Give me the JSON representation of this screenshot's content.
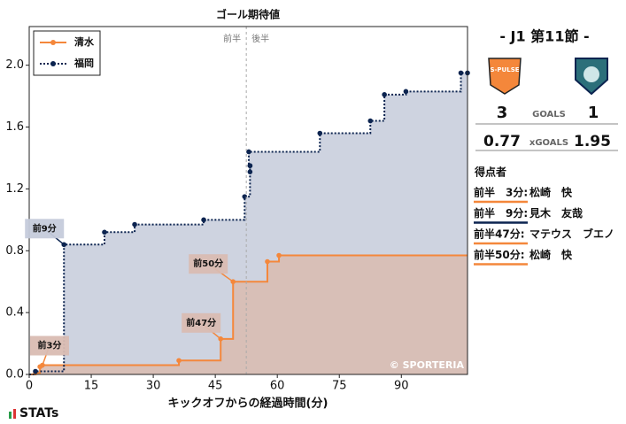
{
  "chart_data": {
    "type": "step",
    "title": "ゴール期待値",
    "xlabel": "キックオフからの経過時間(分)",
    "xlim": [
      0,
      106
    ],
    "ylim": [
      0,
      2.25
    ],
    "xticks": [
      0,
      15,
      30,
      45,
      60,
      75,
      90
    ],
    "yticks": [
      {
        "value": 0,
        "label": "0.0"
      },
      0.4,
      0.8,
      1.2,
      1.6,
      {
        "value": 2,
        "label": "2.0"
      }
    ],
    "halftime": {
      "x": 52.5,
      "left": "前半",
      "right": "後半"
    },
    "legend": "upper left",
    "watermark": "© SPORTERIA",
    "series": [
      {
        "name": "清水",
        "color": "#f4873b",
        "fill": "#d9bcb2",
        "style": "solid",
        "x": [
          0,
          1.5,
          2.6,
          3.2,
          36.2,
          46.3,
          49.3,
          57.6,
          60.4
        ],
        "values": [
          0,
          0.01,
          0.05,
          0.06,
          0.09,
          0.23,
          0.6,
          0.73,
          0.77
        ]
      },
      {
        "name": "福岡",
        "color": "#0c2450",
        "fill": "#c5cbdb",
        "style": "dotted",
        "x": [
          0,
          1.5,
          8.4,
          18.2,
          25.5,
          42.2,
          52.1,
          53.4,
          53.4,
          53.4,
          53.1,
          70.3,
          82.5,
          85.9,
          91.1,
          104.4,
          106
        ],
        "values": [
          0,
          0.02,
          0.84,
          0.92,
          0.97,
          1.0,
          1.15,
          1.31,
          1.35,
          1.35,
          1.44,
          1.56,
          1.64,
          1.81,
          1.83,
          1.95,
          1.95
        ]
      }
    ],
    "annotations": [
      {
        "text": "前3分",
        "series": 0,
        "x": 3.2,
        "y": 0.06
      },
      {
        "text": "前9分",
        "series": 1,
        "x": 8.4,
        "y": 0.84
      },
      {
        "text": "前50分",
        "series": 0,
        "x": 49.3,
        "y": 0.6
      },
      {
        "text": "前47分",
        "series": 0,
        "x": 46.3,
        "y": 0.23
      }
    ]
  },
  "match": {
    "round": "-  J1 第11節  -",
    "home_logo": "S-PULSE",
    "goals_label": "GOALS",
    "home_goals": "3",
    "away_goals": "1",
    "xg_label": "xGOALS",
    "home_xg": "0.77",
    "away_xg": "1.95",
    "scorers_title": "得点者",
    "scorers": [
      {
        "time": "前半　3分:",
        "player": "松崎　快",
        "team": 0
      },
      {
        "time": "前半　9分:",
        "player": "見木　友哉",
        "team": 1
      },
      {
        "time": "前半47分:",
        "player": "マテウス　ブエノ",
        "team": 0
      },
      {
        "time": "前半50分:",
        "player": "松崎　快",
        "team": 0
      }
    ]
  },
  "brand": "STATs"
}
